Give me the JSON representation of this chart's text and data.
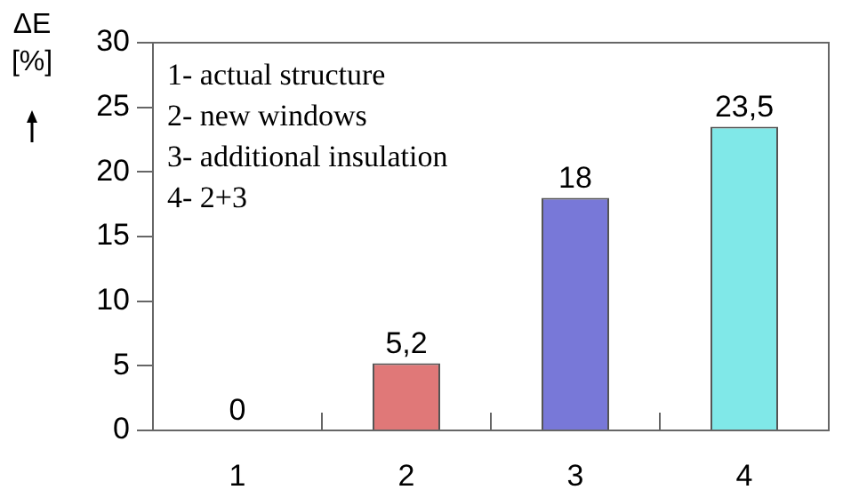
{
  "chart_data": {
    "type": "bar",
    "ylabel": "ΔE [%]",
    "categories": [
      "1",
      "2",
      "3",
      "4"
    ],
    "values": [
      0,
      5.2,
      18,
      23.5
    ],
    "value_labels": [
      "0",
      "5,2",
      "18",
      "23,5"
    ],
    "colors": [
      "#808080",
      "#e07878",
      "#7878d8",
      "#80e8e8"
    ],
    "ylim": [
      0,
      30
    ],
    "yticks": [
      0,
      5,
      10,
      15,
      20,
      25,
      30
    ],
    "annotations": [
      "1- actual structure",
      "2- new windows",
      "3- additional insulation",
      "4- 2+3"
    ]
  }
}
